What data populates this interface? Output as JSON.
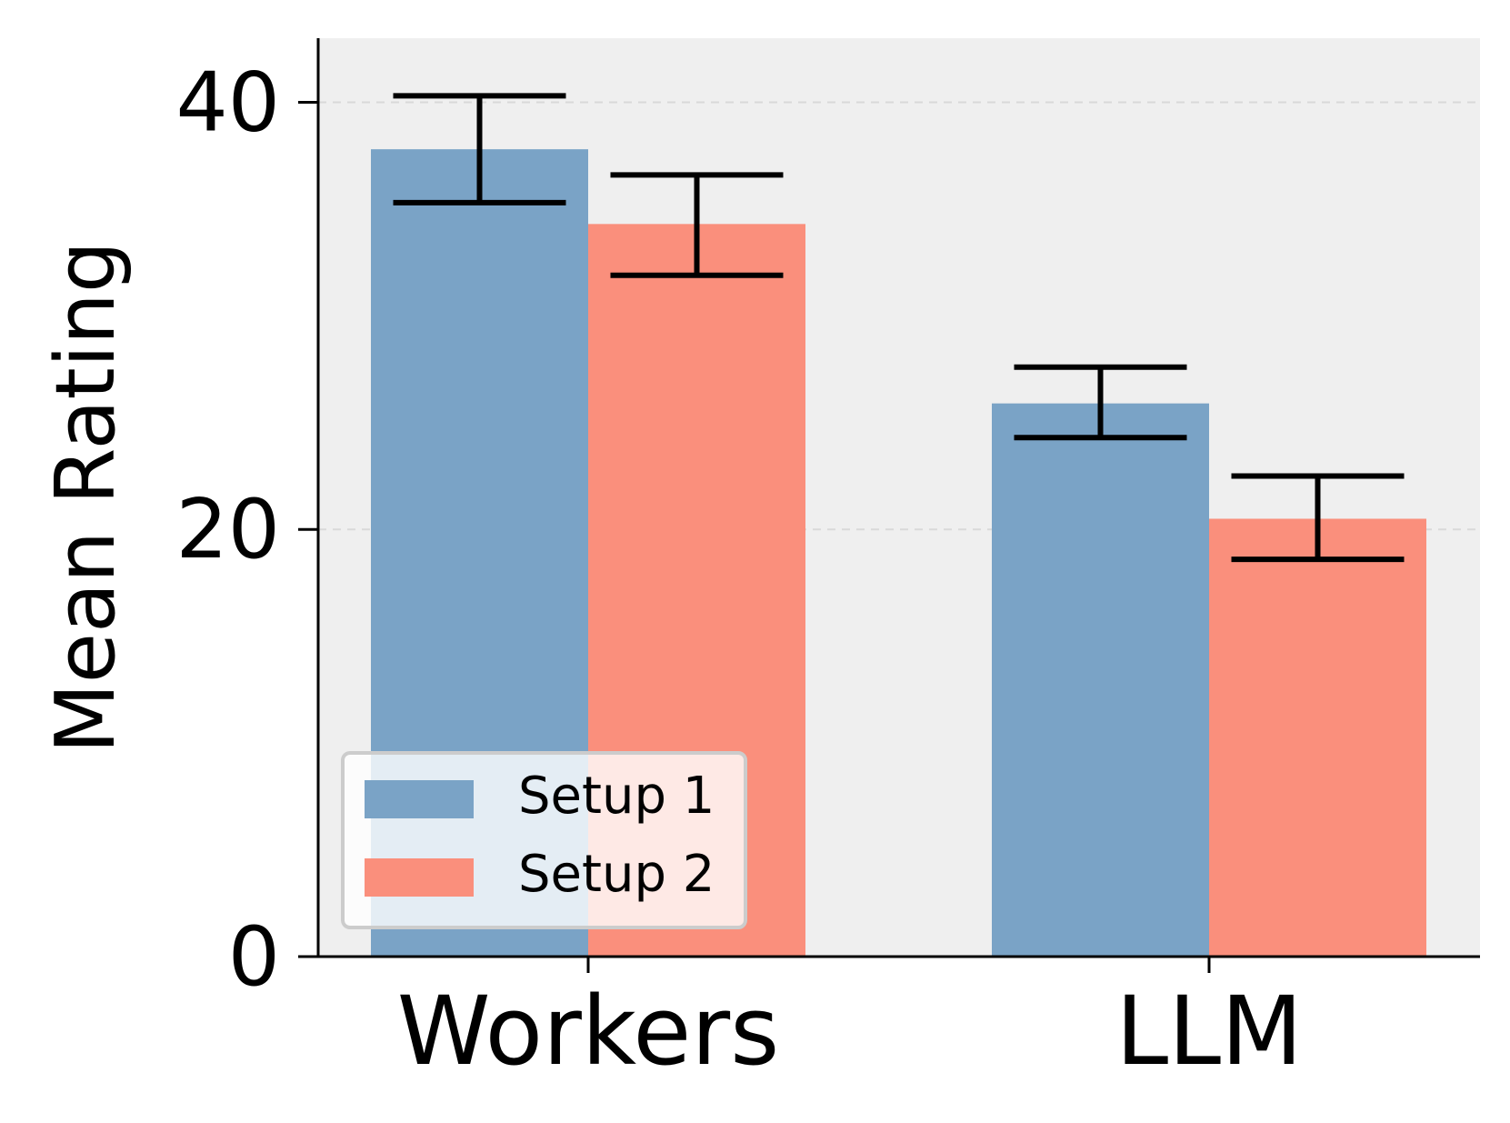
{
  "chart_data": {
    "type": "bar",
    "categories": [
      "Workers",
      "LLM"
    ],
    "series": [
      {
        "name": "Setup 1",
        "values": [
          37.8,
          25.9
        ],
        "errors": [
          [
            35.3,
            40.3
          ],
          [
            24.3,
            27.6
          ]
        ]
      },
      {
        "name": "Setup 2",
        "values": [
          34.3,
          20.5
        ],
        "errors": [
          [
            31.9,
            36.6
          ],
          [
            18.6,
            22.5
          ]
        ]
      }
    ],
    "xlabel": "",
    "ylabel": "Mean Rating",
    "ylim": [
      0,
      43
    ],
    "yticks": [
      "0",
      "20",
      "40"
    ],
    "grid": "y, dashed",
    "legend": "lower-left",
    "colors": {
      "Setup 1": "#7aa3c6",
      "Setup 2": "#fa8f7c",
      "plot_bg": "#efefef"
    }
  }
}
